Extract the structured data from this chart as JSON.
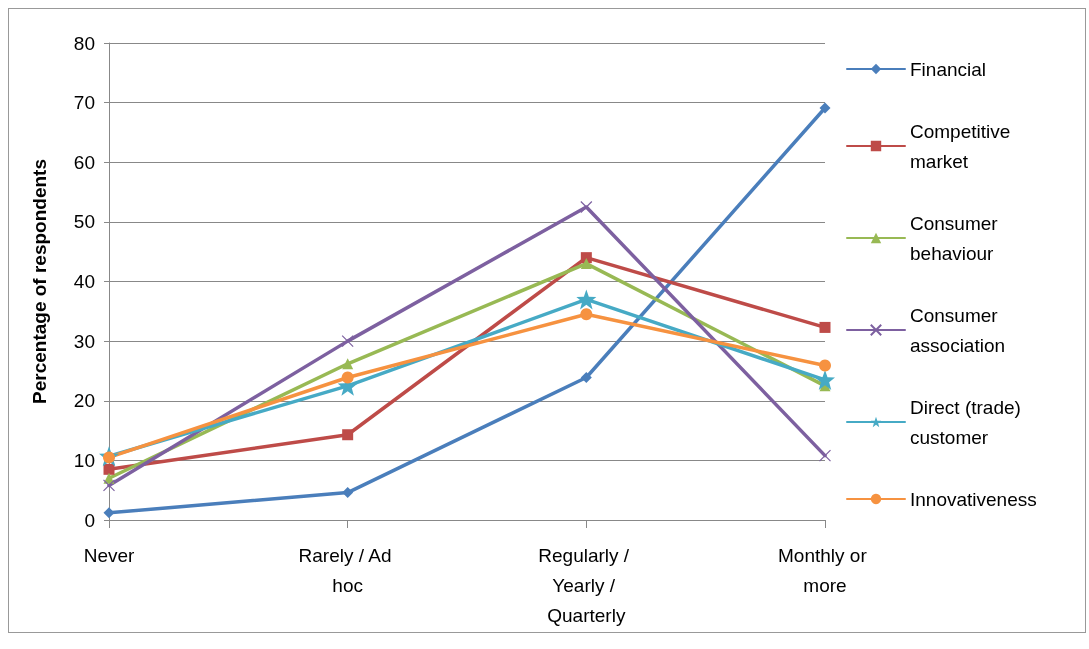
{
  "chart_data": {
    "type": "line",
    "ylabel": "Percentage of respondents",
    "categories": [
      "Never",
      "Rarely / Ad hoc",
      "Regularly / Yearly / Quarterly",
      "Monthly or more"
    ],
    "ylim": [
      0,
      80
    ],
    "yticks": [
      0,
      10,
      20,
      30,
      40,
      50,
      60,
      70,
      80
    ],
    "grid": "y",
    "legend": "right",
    "line_style": "solid",
    "series": [
      {
        "name": "Financial",
        "color": "#4a7ebb",
        "marker": "diamond",
        "values": [
          1.2,
          4.6,
          23.9,
          69.1
        ]
      },
      {
        "name": "Competitive market",
        "color": "#be4b48",
        "marker": "square",
        "values": [
          8.5,
          14.3,
          44,
          32.3
        ]
      },
      {
        "name": "Consumer behaviour",
        "color": "#98b954",
        "marker": "triangle",
        "values": [
          7,
          26.2,
          43,
          22.5
        ]
      },
      {
        "name": "Consumer association",
        "color": "#7d60a0",
        "marker": "cross",
        "values": [
          5.8,
          30,
          52.5,
          10.8
        ]
      },
      {
        "name": "Direct (trade) customer",
        "color": "#46aac5",
        "marker": "star",
        "values": [
          10.7,
          22.5,
          37,
          23.5
        ]
      },
      {
        "name": "Innovativeness",
        "color": "#f69240",
        "marker": "circle",
        "values": [
          10.5,
          23.9,
          34.5,
          25.9
        ]
      }
    ]
  }
}
